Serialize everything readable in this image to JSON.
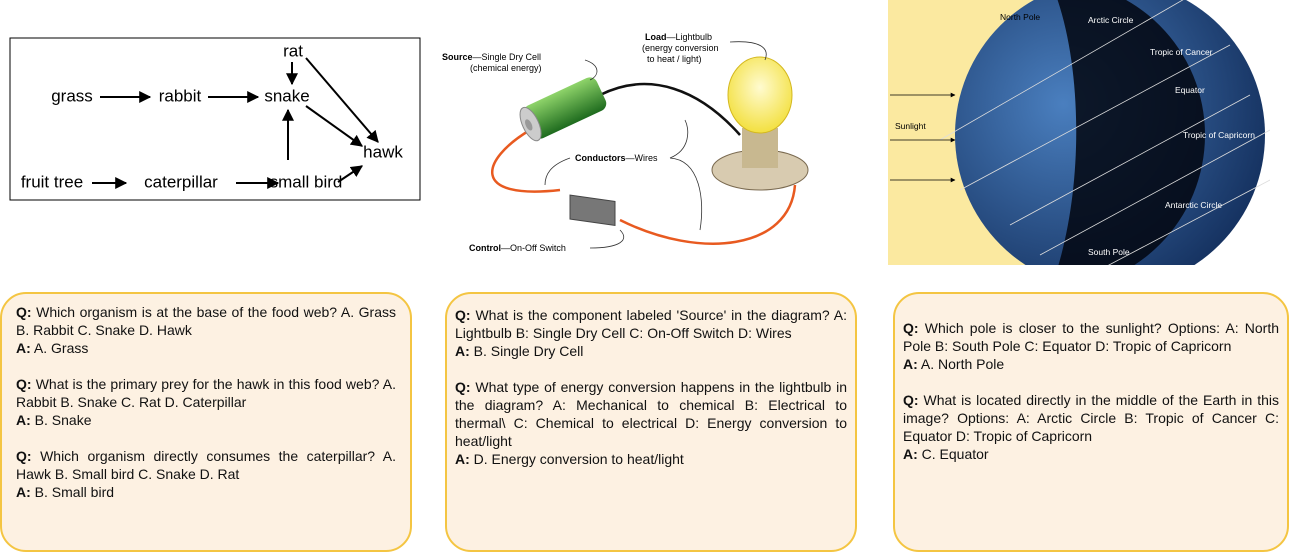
{
  "labels": {
    "q": "Q:",
    "a": "A:"
  },
  "food_web": {
    "nodes": [
      "rat",
      "grass",
      "rabbit",
      "snake",
      "hawk",
      "fruit tree",
      "caterpillar",
      "small bird"
    ]
  },
  "circuit": {
    "source": {
      "term": "Source",
      "desc": "—Single Dry Cell",
      "note": "(chemical energy)"
    },
    "load": {
      "term": "Load",
      "desc": "—Lightbulb",
      "note1": "(energy conversion",
      "note2": "to heat / light)"
    },
    "conductors": {
      "term": "Conductors",
      "desc": "—Wires"
    },
    "control": {
      "term": "Control",
      "desc": "—On-Off Switch"
    }
  },
  "earth": {
    "labels": [
      "North Pole",
      "Arctic Circle",
      "Tropic of Cancer",
      "Equator",
      "Sunlight",
      "Tropic of Capricorn",
      "Antarctic Circle",
      "South Pole"
    ]
  },
  "panels": [
    {
      "qa": [
        {
          "q": "Which organism is at the base of the food web? A. Grass B. Rabbit C. Snake D. Hawk",
          "a": "A. Grass"
        },
        {
          "q": "What is the primary prey for the hawk in this food web? A. Rabbit B. Snake C. Rat D. Caterpillar",
          "a": "B. Snake"
        },
        {
          "q": "Which organism directly consumes the caterpillar? A. Hawk B. Small bird C. Snake D. Rat",
          "a": "B. Small bird"
        }
      ]
    },
    {
      "qa": [
        {
          "q": "What is the component labeled 'Source' in the diagram? A: Lightbulb B: Single Dry Cell C: On-Off Switch D: Wires",
          "a": "B. Single Dry Cell"
        },
        {
          "q": "What type of energy conversion happens in the lightbulb in the diagram? A: Mechanical to chemical B: Electrical to thermal\\ C: Chemical to electrical D: Energy conversion to heat/light",
          "a": "D. Energy conversion to heat/light"
        }
      ]
    },
    {
      "qa": [
        {
          "q": "Which pole is closer to the sunlight? Options: A: North Pole B: South Pole C: Equator D: Tropic of Capricorn",
          "a": "A. North Pole"
        },
        {
          "q": "What is located directly in the middle of the Earth in this image? Options: A: Arctic Circle B: Tropic of Cancer C: Equator D: Tropic of Capricorn",
          "a": "C. Equator"
        }
      ]
    }
  ]
}
